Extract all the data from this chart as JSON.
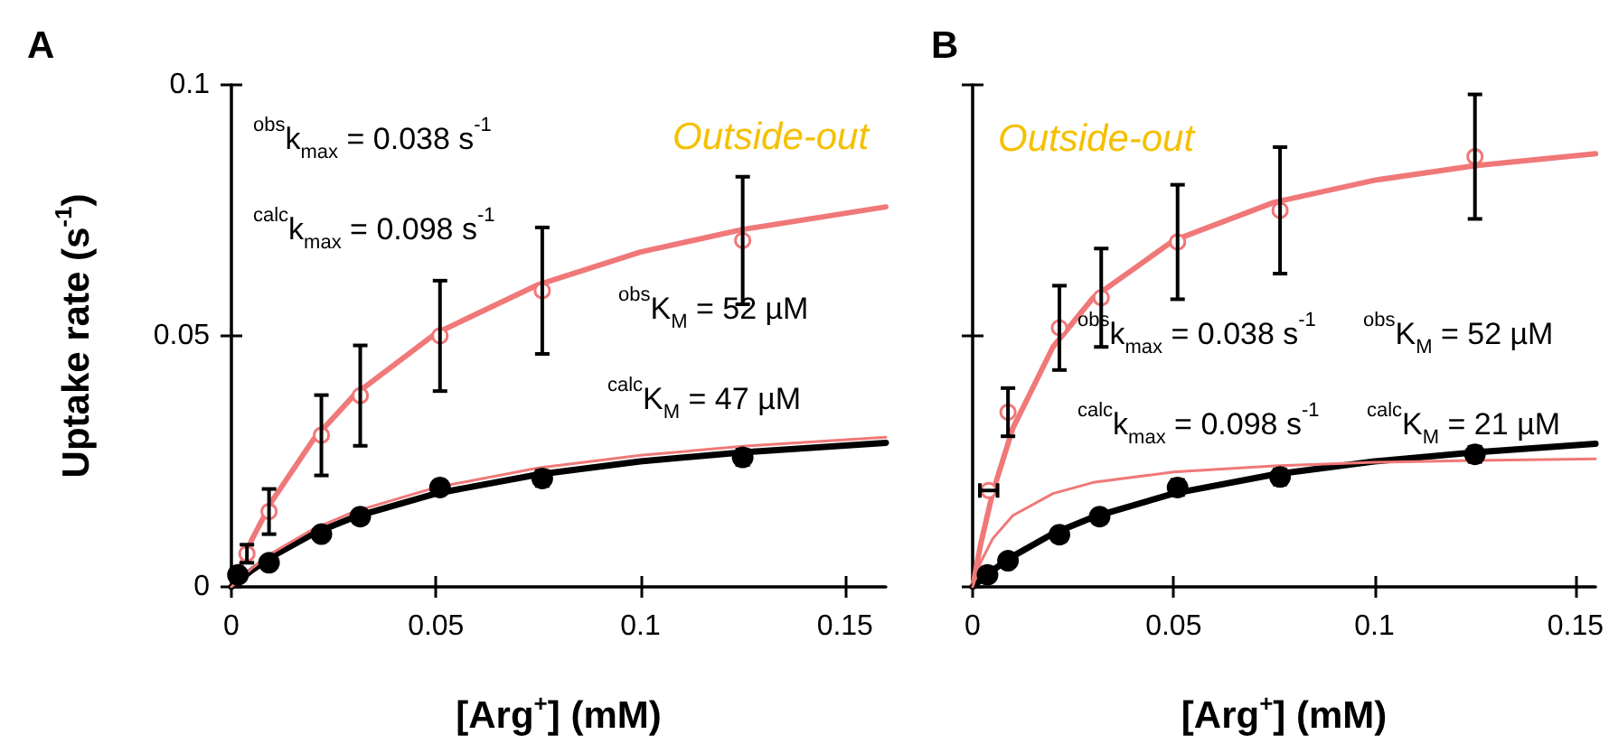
{
  "chart_data": [
    {
      "type": "scatter",
      "title": "A",
      "xlabel": "[Arg$^{+}$] (mM)",
      "ylabel": "Uptake rate (s$^{-1}$)",
      "xlim": [
        0,
        0.16
      ],
      "ylim": [
        0,
        0.1
      ],
      "xticks": [
        0,
        0.05,
        0.1,
        0.15
      ],
      "yticks": [
        0,
        0.05,
        0.1
      ],
      "marker": "circle",
      "annotations": [
        "$^{obs}$k$_{max}$ = 0.038 s$^{-1}$",
        "$^{calc}$k$_{max}$ = 0.098 s$^{-1}$",
        "Outside-out",
        "$^{obs}$K$_{M}$ = 52 µM",
        "$^{calc}$K$_{M}$ = 47 µM"
      ],
      "series": [
        {
          "color": "#f07878",
          "x": [
            0.0038,
            0.0092,
            0.022,
            0.0315,
            0.051,
            0.076,
            0.125
          ],
          "values": [
            0.0066,
            0.015,
            0.0302,
            0.0381,
            0.05,
            0.059,
            0.069
          ],
          "errors": [
            0.0018,
            0.0045,
            0.008,
            0.01,
            0.011,
            0.0126,
            0.0127
          ]
        },
        {
          "color": "#000000",
          "x": [
            0.0016,
            0.0092,
            0.022,
            0.0315,
            0.051,
            0.076,
            0.125
          ],
          "values": [
            0.0024,
            0.0048,
            0.0105,
            0.014,
            0.0198,
            0.0216,
            0.0258
          ],
          "errors": [
            0.001,
            0.001,
            0.001,
            0.001,
            0.001,
            0.0015,
            0.0015
          ]
        },
        {
          "type": "line",
          "marker": "none",
          "color": "#f07878",
          "x": [
            0,
            0.005,
            0.01,
            0.02,
            0.03,
            0.05,
            0.075,
            0.1,
            0.125,
            0.16
          ],
          "values": [
            0,
            0.0094,
            0.0172,
            0.0293,
            0.0382,
            0.0505,
            0.0602,
            0.0667,
            0.0712,
            0.0757
          ]
        },
        {
          "type": "line",
          "marker": "none",
          "color": "#000000",
          "x": [
            0,
            0.005,
            0.01,
            0.02,
            0.03,
            0.05,
            0.075,
            0.1,
            0.125,
            0.16
          ],
          "values": [
            0,
            0.0033,
            0.0061,
            0.0106,
            0.0139,
            0.0186,
            0.0224,
            0.025,
            0.0268,
            0.0287
          ]
        },
        {
          "type": "line",
          "marker": "none",
          "color": "#f07878",
          "x": [
            0,
            0.005,
            0.01,
            0.02,
            0.03,
            0.05,
            0.075,
            0.1,
            0.125,
            0.16
          ],
          "values": [
            0,
            0.0037,
            0.0068,
            0.0115,
            0.015,
            0.0198,
            0.0237,
            0.0262,
            0.028,
            0.0298
          ]
        }
      ]
    },
    {
      "type": "scatter",
      "title": "B",
      "xlabel": "[Arg$^{+}$] (mM)",
      "xlim": [
        0,
        0.155
      ],
      "ylim": [
        0,
        0.1
      ],
      "xticks": [
        0,
        0.05,
        0.1,
        0.15
      ],
      "yticks": [
        0,
        0.05,
        0.1
      ],
      "tick_labels": "x",
      "marker": "circle",
      "annotations": [
        "Outside-out",
        "$^{obs}$k$_{max}$ = 0.038 s$^{-1}$",
        "$^{obs}$K$_{M}$ = 52 µM",
        "$^{calc}$k$_{max}$ = 0.098 s$^{-1}$",
        "$^{calc}$K$_{M}$ = 21 µM"
      ],
      "series": [
        {
          "color": "#f07878",
          "x": [
            0.004,
            0.0088,
            0.0216,
            0.032,
            0.051,
            0.0765,
            0.125
          ],
          "values": [
            0.0192,
            0.0348,
            0.0516,
            0.0576,
            0.0687,
            0.075,
            0.0857
          ],
          "errors": [
            null,
            0.0048,
            0.0084,
            0.0098,
            0.0114,
            0.0126,
            0.0124
          ],
          "xerrors": [
            0.0022,
            null,
            null,
            null,
            null,
            null,
            null
          ]
        },
        {
          "color": "#000000",
          "x": [
            0.0037,
            0.0088,
            0.0216,
            0.0316,
            0.051,
            0.0765,
            0.125
          ],
          "values": [
            0.0024,
            0.0052,
            0.0104,
            0.014,
            0.0198,
            0.0219,
            0.0264
          ],
          "errors": [
            0.001,
            0.001,
            0.001,
            0.001,
            0.0015,
            0.0015,
            0.0015
          ]
        },
        {
          "type": "line",
          "marker": "none",
          "color": "#f07878",
          "x": [
            0,
            0.002,
            0.005,
            0.01,
            0.02,
            0.03,
            0.05,
            0.075,
            0.1,
            0.125,
            0.155
          ],
          "values": [
            0,
            0.0085,
            0.0188,
            0.0316,
            0.0478,
            0.0576,
            0.069,
            0.0766,
            0.081,
            0.0839,
            0.0863
          ]
        },
        {
          "type": "line",
          "marker": "none",
          "color": "#000000",
          "x": [
            0,
            0.005,
            0.01,
            0.02,
            0.03,
            0.05,
            0.075,
            0.1,
            0.125,
            0.155
          ],
          "values": [
            0,
            0.0033,
            0.0061,
            0.0106,
            0.0139,
            0.0186,
            0.0224,
            0.025,
            0.0268,
            0.0285
          ]
        },
        {
          "type": "line",
          "marker": "none",
          "color": "#f07878",
          "x": [
            0,
            0.002,
            0.005,
            0.01,
            0.02,
            0.03,
            0.05,
            0.075,
            0.1,
            0.125,
            0.155
          ],
          "values": [
            0,
            0.0049,
            0.0096,
            0.0142,
            0.0186,
            0.0208,
            0.0229,
            0.0241,
            0.0248,
            0.0252,
            0.0255
          ]
        }
      ]
    }
  ]
}
